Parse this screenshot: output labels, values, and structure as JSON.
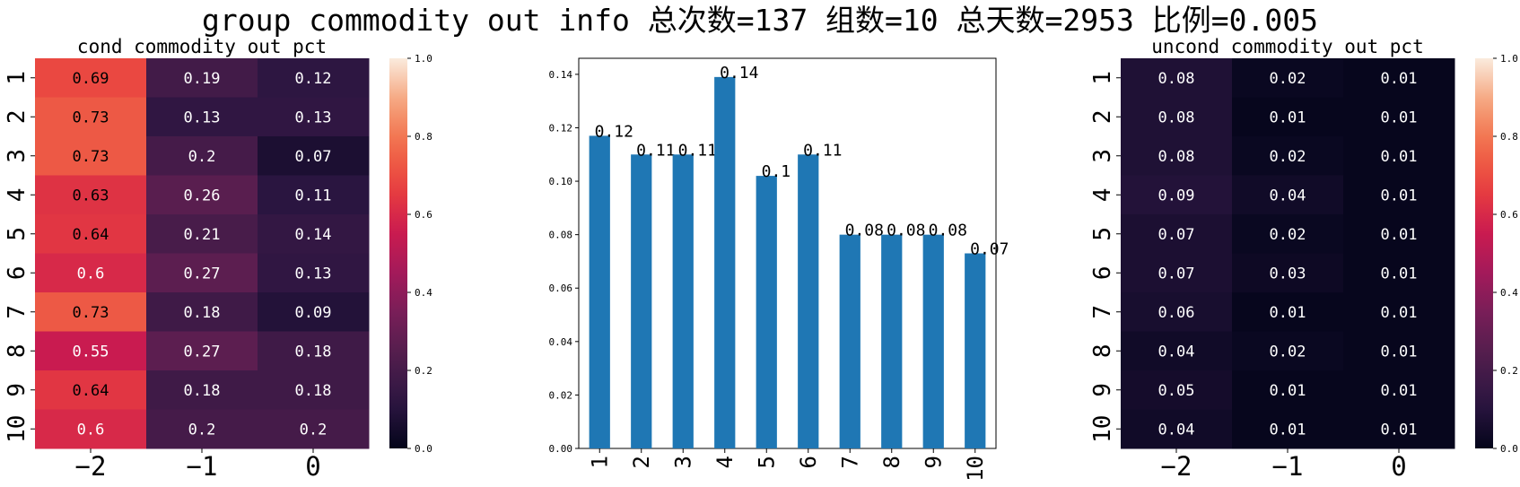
{
  "figure": {
    "suptitle": "group commodity out info 总次数=137 组数=10 总天数=2953 比例=0.005"
  },
  "colormap": {
    "stops": [
      "#03051a",
      "#2a1540",
      "#4c1d4b",
      "#721f57",
      "#a11a5b",
      "#cb1b4f",
      "#e83f3f",
      "#f16c49",
      "#f6a47c",
      "#faebdd"
    ]
  },
  "chart_data": [
    {
      "type": "heatmap",
      "title": "cond commodity out pct",
      "columns": [
        "−2",
        "−1",
        "0"
      ],
      "rows": [
        "1",
        "2",
        "3",
        "4",
        "5",
        "6",
        "7",
        "8",
        "9",
        "10"
      ],
      "values": [
        [
          0.69,
          0.19,
          0.12
        ],
        [
          0.73,
          0.13,
          0.13
        ],
        [
          0.73,
          0.2,
          0.07
        ],
        [
          0.63,
          0.26,
          0.11
        ],
        [
          0.64,
          0.21,
          0.14
        ],
        [
          0.6,
          0.27,
          0.13
        ],
        [
          0.73,
          0.18,
          0.09
        ],
        [
          0.55,
          0.27,
          0.18
        ],
        [
          0.64,
          0.18,
          0.18
        ],
        [
          0.6,
          0.2,
          0.2
        ]
      ],
      "labels": [
        [
          "0.69",
          "0.19",
          "0.12"
        ],
        [
          "0.73",
          "0.13",
          "0.13"
        ],
        [
          "0.73",
          "0.2",
          "0.07"
        ],
        [
          "0.63",
          "0.26",
          "0.11"
        ],
        [
          "0.64",
          "0.21",
          "0.14"
        ],
        [
          "0.6",
          "0.27",
          "0.13"
        ],
        [
          "0.73",
          "0.18",
          "0.09"
        ],
        [
          "0.55",
          "0.27",
          "0.18"
        ],
        [
          "0.64",
          "0.18",
          "0.18"
        ],
        [
          "0.6",
          "0.2",
          "0.2"
        ]
      ],
      "vmin": 0,
      "vmax": 1,
      "colorbar_ticks": [
        "0.0",
        "0.2",
        "0.4",
        "0.6",
        "0.8",
        "1.0"
      ]
    },
    {
      "type": "bar",
      "title": "",
      "categories": [
        "1",
        "2",
        "3",
        "4",
        "5",
        "6",
        "7",
        "8",
        "9",
        "10"
      ],
      "values": [
        0.117,
        0.11,
        0.11,
        0.139,
        0.102,
        0.11,
        0.08,
        0.08,
        0.08,
        0.073
      ],
      "labels": [
        "0.12",
        "0.11",
        "0.11",
        "0.14",
        "0.1",
        "0.11",
        "0.08",
        "0.08",
        "0.08",
        "0.07"
      ],
      "ylim": [
        0,
        0.146
      ],
      "yticks": [
        "0.00",
        "0.02",
        "0.04",
        "0.06",
        "0.08",
        "0.10",
        "0.12",
        "0.14"
      ],
      "color": "#1f77b4"
    },
    {
      "type": "heatmap",
      "title": "uncond commodity out pct",
      "columns": [
        "−2",
        "−1",
        "0"
      ],
      "rows": [
        "1",
        "2",
        "3",
        "4",
        "5",
        "6",
        "7",
        "8",
        "9",
        "10"
      ],
      "values": [
        [
          0.08,
          0.02,
          0.01
        ],
        [
          0.08,
          0.01,
          0.01
        ],
        [
          0.08,
          0.02,
          0.01
        ],
        [
          0.09,
          0.04,
          0.01
        ],
        [
          0.07,
          0.02,
          0.01
        ],
        [
          0.07,
          0.03,
          0.01
        ],
        [
          0.06,
          0.01,
          0.01
        ],
        [
          0.04,
          0.02,
          0.01
        ],
        [
          0.05,
          0.01,
          0.01
        ],
        [
          0.04,
          0.01,
          0.01
        ]
      ],
      "labels": [
        [
          "0.08",
          "0.02",
          "0.01"
        ],
        [
          "0.08",
          "0.01",
          "0.01"
        ],
        [
          "0.08",
          "0.02",
          "0.01"
        ],
        [
          "0.09",
          "0.04",
          "0.01"
        ],
        [
          "0.07",
          "0.02",
          "0.01"
        ],
        [
          "0.07",
          "0.03",
          "0.01"
        ],
        [
          "0.06",
          "0.01",
          "0.01"
        ],
        [
          "0.04",
          "0.02",
          "0.01"
        ],
        [
          "0.05",
          "0.01",
          "0.01"
        ],
        [
          "0.04",
          "0.01",
          "0.01"
        ]
      ],
      "vmin": 0,
      "vmax": 1,
      "colorbar_ticks": [
        "0.0",
        "0.2",
        "0.4",
        "0.6",
        "0.8",
        "1.0"
      ]
    }
  ]
}
